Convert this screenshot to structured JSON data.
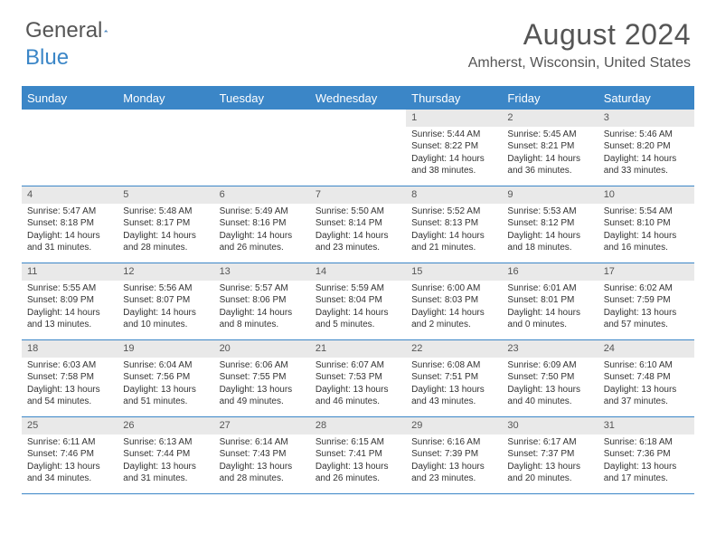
{
  "logo": {
    "general": "General",
    "blue": "Blue"
  },
  "title": "August 2024",
  "location": "Amherst, Wisconsin, United States",
  "colors": {
    "header_bg": "#3b86c7",
    "daynum_bg": "#e9e9e9",
    "text": "#333333",
    "logo_blue": "#3b86c7"
  },
  "day_names": [
    "Sunday",
    "Monday",
    "Tuesday",
    "Wednesday",
    "Thursday",
    "Friday",
    "Saturday"
  ],
  "weeks": [
    [
      {
        "n": "",
        "sr": "",
        "ss": "",
        "dl1": "",
        "dl2": ""
      },
      {
        "n": "",
        "sr": "",
        "ss": "",
        "dl1": "",
        "dl2": ""
      },
      {
        "n": "",
        "sr": "",
        "ss": "",
        "dl1": "",
        "dl2": ""
      },
      {
        "n": "",
        "sr": "",
        "ss": "",
        "dl1": "",
        "dl2": ""
      },
      {
        "n": "1",
        "sr": "Sunrise: 5:44 AM",
        "ss": "Sunset: 8:22 PM",
        "dl1": "Daylight: 14 hours",
        "dl2": "and 38 minutes."
      },
      {
        "n": "2",
        "sr": "Sunrise: 5:45 AM",
        "ss": "Sunset: 8:21 PM",
        "dl1": "Daylight: 14 hours",
        "dl2": "and 36 minutes."
      },
      {
        "n": "3",
        "sr": "Sunrise: 5:46 AM",
        "ss": "Sunset: 8:20 PM",
        "dl1": "Daylight: 14 hours",
        "dl2": "and 33 minutes."
      }
    ],
    [
      {
        "n": "4",
        "sr": "Sunrise: 5:47 AM",
        "ss": "Sunset: 8:18 PM",
        "dl1": "Daylight: 14 hours",
        "dl2": "and 31 minutes."
      },
      {
        "n": "5",
        "sr": "Sunrise: 5:48 AM",
        "ss": "Sunset: 8:17 PM",
        "dl1": "Daylight: 14 hours",
        "dl2": "and 28 minutes."
      },
      {
        "n": "6",
        "sr": "Sunrise: 5:49 AM",
        "ss": "Sunset: 8:16 PM",
        "dl1": "Daylight: 14 hours",
        "dl2": "and 26 minutes."
      },
      {
        "n": "7",
        "sr": "Sunrise: 5:50 AM",
        "ss": "Sunset: 8:14 PM",
        "dl1": "Daylight: 14 hours",
        "dl2": "and 23 minutes."
      },
      {
        "n": "8",
        "sr": "Sunrise: 5:52 AM",
        "ss": "Sunset: 8:13 PM",
        "dl1": "Daylight: 14 hours",
        "dl2": "and 21 minutes."
      },
      {
        "n": "9",
        "sr": "Sunrise: 5:53 AM",
        "ss": "Sunset: 8:12 PM",
        "dl1": "Daylight: 14 hours",
        "dl2": "and 18 minutes."
      },
      {
        "n": "10",
        "sr": "Sunrise: 5:54 AM",
        "ss": "Sunset: 8:10 PM",
        "dl1": "Daylight: 14 hours",
        "dl2": "and 16 minutes."
      }
    ],
    [
      {
        "n": "11",
        "sr": "Sunrise: 5:55 AM",
        "ss": "Sunset: 8:09 PM",
        "dl1": "Daylight: 14 hours",
        "dl2": "and 13 minutes."
      },
      {
        "n": "12",
        "sr": "Sunrise: 5:56 AM",
        "ss": "Sunset: 8:07 PM",
        "dl1": "Daylight: 14 hours",
        "dl2": "and 10 minutes."
      },
      {
        "n": "13",
        "sr": "Sunrise: 5:57 AM",
        "ss": "Sunset: 8:06 PM",
        "dl1": "Daylight: 14 hours",
        "dl2": "and 8 minutes."
      },
      {
        "n": "14",
        "sr": "Sunrise: 5:59 AM",
        "ss": "Sunset: 8:04 PM",
        "dl1": "Daylight: 14 hours",
        "dl2": "and 5 minutes."
      },
      {
        "n": "15",
        "sr": "Sunrise: 6:00 AM",
        "ss": "Sunset: 8:03 PM",
        "dl1": "Daylight: 14 hours",
        "dl2": "and 2 minutes."
      },
      {
        "n": "16",
        "sr": "Sunrise: 6:01 AM",
        "ss": "Sunset: 8:01 PM",
        "dl1": "Daylight: 14 hours",
        "dl2": "and 0 minutes."
      },
      {
        "n": "17",
        "sr": "Sunrise: 6:02 AM",
        "ss": "Sunset: 7:59 PM",
        "dl1": "Daylight: 13 hours",
        "dl2": "and 57 minutes."
      }
    ],
    [
      {
        "n": "18",
        "sr": "Sunrise: 6:03 AM",
        "ss": "Sunset: 7:58 PM",
        "dl1": "Daylight: 13 hours",
        "dl2": "and 54 minutes."
      },
      {
        "n": "19",
        "sr": "Sunrise: 6:04 AM",
        "ss": "Sunset: 7:56 PM",
        "dl1": "Daylight: 13 hours",
        "dl2": "and 51 minutes."
      },
      {
        "n": "20",
        "sr": "Sunrise: 6:06 AM",
        "ss": "Sunset: 7:55 PM",
        "dl1": "Daylight: 13 hours",
        "dl2": "and 49 minutes."
      },
      {
        "n": "21",
        "sr": "Sunrise: 6:07 AM",
        "ss": "Sunset: 7:53 PM",
        "dl1": "Daylight: 13 hours",
        "dl2": "and 46 minutes."
      },
      {
        "n": "22",
        "sr": "Sunrise: 6:08 AM",
        "ss": "Sunset: 7:51 PM",
        "dl1": "Daylight: 13 hours",
        "dl2": "and 43 minutes."
      },
      {
        "n": "23",
        "sr": "Sunrise: 6:09 AM",
        "ss": "Sunset: 7:50 PM",
        "dl1": "Daylight: 13 hours",
        "dl2": "and 40 minutes."
      },
      {
        "n": "24",
        "sr": "Sunrise: 6:10 AM",
        "ss": "Sunset: 7:48 PM",
        "dl1": "Daylight: 13 hours",
        "dl2": "and 37 minutes."
      }
    ],
    [
      {
        "n": "25",
        "sr": "Sunrise: 6:11 AM",
        "ss": "Sunset: 7:46 PM",
        "dl1": "Daylight: 13 hours",
        "dl2": "and 34 minutes."
      },
      {
        "n": "26",
        "sr": "Sunrise: 6:13 AM",
        "ss": "Sunset: 7:44 PM",
        "dl1": "Daylight: 13 hours",
        "dl2": "and 31 minutes."
      },
      {
        "n": "27",
        "sr": "Sunrise: 6:14 AM",
        "ss": "Sunset: 7:43 PM",
        "dl1": "Daylight: 13 hours",
        "dl2": "and 28 minutes."
      },
      {
        "n": "28",
        "sr": "Sunrise: 6:15 AM",
        "ss": "Sunset: 7:41 PM",
        "dl1": "Daylight: 13 hours",
        "dl2": "and 26 minutes."
      },
      {
        "n": "29",
        "sr": "Sunrise: 6:16 AM",
        "ss": "Sunset: 7:39 PM",
        "dl1": "Daylight: 13 hours",
        "dl2": "and 23 minutes."
      },
      {
        "n": "30",
        "sr": "Sunrise: 6:17 AM",
        "ss": "Sunset: 7:37 PM",
        "dl1": "Daylight: 13 hours",
        "dl2": "and 20 minutes."
      },
      {
        "n": "31",
        "sr": "Sunrise: 6:18 AM",
        "ss": "Sunset: 7:36 PM",
        "dl1": "Daylight: 13 hours",
        "dl2": "and 17 minutes."
      }
    ]
  ]
}
